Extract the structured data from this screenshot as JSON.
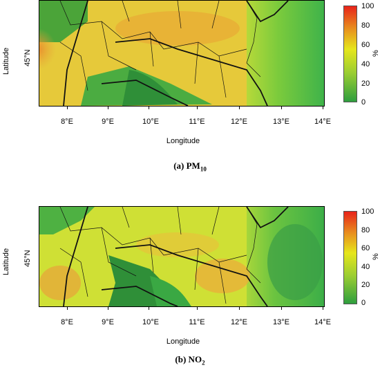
{
  "panels": [
    {
      "id": "a",
      "caption_prefix": "(a) PM",
      "caption_sub": "10",
      "ylabel": "Latitude",
      "lat_tick": "45°N",
      "xlabel": "Longitude",
      "xticks": [
        "8°E",
        "9°E",
        "10°E",
        "11°E",
        "12°E",
        "13°E",
        "14°E"
      ],
      "colorbar": {
        "ticks": [
          "100",
          "80",
          "60",
          "40",
          "20",
          "0"
        ],
        "unit": "%"
      }
    },
    {
      "id": "b",
      "caption_prefix": "(b) NO",
      "caption_sub": "2",
      "ylabel": "Latitude",
      "lat_tick": "45°N",
      "xlabel": "Longitude",
      "xticks": [
        "8°E",
        "9°E",
        "10°E",
        "11°E",
        "12°E",
        "13°E",
        "14°E"
      ],
      "colorbar": {
        "ticks": [
          "100",
          "80",
          "60",
          "40",
          "20",
          "0"
        ],
        "unit": "%"
      }
    }
  ],
  "colors": {
    "scale_low": "#2e9e3e",
    "scale_mid": "#e6e61c",
    "scale_high": "#e8231a"
  }
}
